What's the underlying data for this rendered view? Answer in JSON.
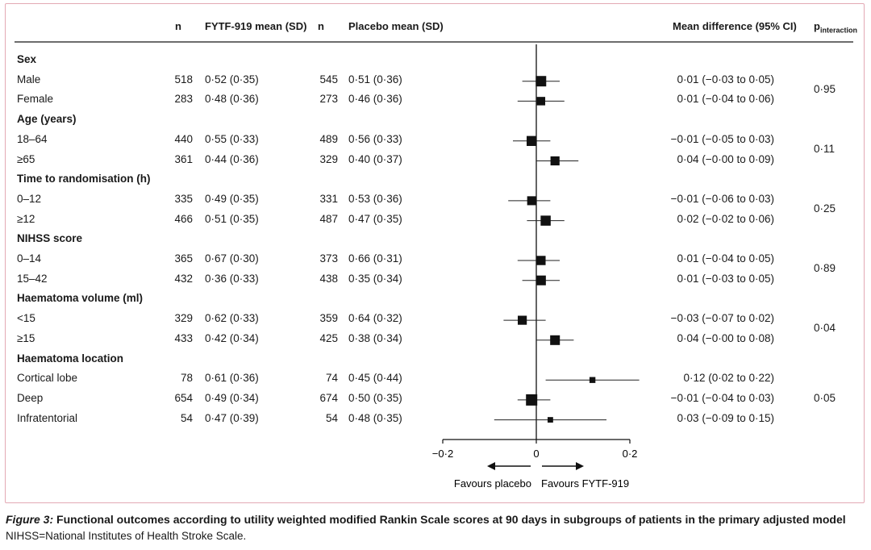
{
  "header": {
    "n1": "n",
    "drug_mean": "FYTF-919 mean (SD)",
    "n2": "n",
    "placebo_mean": "Placebo mean (SD)",
    "mean_diff": "Mean difference (95% CI)",
    "p_main": "p",
    "p_sub": "interaction"
  },
  "groups": [
    {
      "label": "Sex",
      "p_interaction": "0·95",
      "rows": [
        {
          "label": "Male",
          "n_drug": "518",
          "drug_mean": "0·52 (0·35)",
          "n_placebo": "545",
          "placebo_mean": "0·51 (0·36)",
          "ci_text": "0·01 (−0·03 to 0·05)"
        },
        {
          "label": "Female",
          "n_drug": "283",
          "drug_mean": "0·48 (0·36)",
          "n_placebo": "273",
          "placebo_mean": "0·46 (0·36)",
          "ci_text": "0·01 (−0·04 to 0·06)"
        }
      ]
    },
    {
      "label": "Age (years)",
      "p_interaction": "0·11",
      "rows": [
        {
          "label": "18–64",
          "n_drug": "440",
          "drug_mean": "0·55 (0·33)",
          "n_placebo": "489",
          "placebo_mean": "0·56 (0·33)",
          "ci_text": "−0·01 (−0·05 to 0·03)"
        },
        {
          "label": "≥65",
          "n_drug": "361",
          "drug_mean": "0·44 (0·36)",
          "n_placebo": "329",
          "placebo_mean": "0·40 (0·37)",
          "ci_text": "0·04 (−0·00 to 0·09)"
        }
      ]
    },
    {
      "label": "Time to randomisation (h)",
      "p_interaction": "0·25",
      "rows": [
        {
          "label": "0–12",
          "n_drug": "335",
          "drug_mean": "0·49 (0·35)",
          "n_placebo": "331",
          "placebo_mean": "0·53 (0·36)",
          "ci_text": "−0·01 (−0·06 to 0·03)"
        },
        {
          "label": "≥12",
          "n_drug": "466",
          "drug_mean": "0·51 (0·35)",
          "n_placebo": "487",
          "placebo_mean": "0·47 (0·35)",
          "ci_text": "0·02 (−0·02 to 0·06)"
        }
      ]
    },
    {
      "label": "NIHSS score",
      "p_interaction": "0·89",
      "rows": [
        {
          "label": "0–14",
          "n_drug": "365",
          "drug_mean": "0·67 (0·30)",
          "n_placebo": "373",
          "placebo_mean": "0·66 (0·31)",
          "ci_text": "0·01 (−0·04 to 0·05)"
        },
        {
          "label": "15–42",
          "n_drug": "432",
          "drug_mean": "0·36 (0·33)",
          "n_placebo": "438",
          "placebo_mean": "0·35 (0·34)",
          "ci_text": "0·01 (−0·03 to 0·05)"
        }
      ]
    },
    {
      "label": "Haematoma volume (ml)",
      "p_interaction": "0·04",
      "rows": [
        {
          "label": "<15",
          "n_drug": "329",
          "drug_mean": "0·62 (0·33)",
          "n_placebo": "359",
          "placebo_mean": "0·64 (0·32)",
          "ci_text": "−0·03 (−0·07 to 0·02)"
        },
        {
          "label": "≥15",
          "n_drug": "433",
          "drug_mean": "0·42 (0·34)",
          "n_placebo": "425",
          "placebo_mean": "0·38 (0·34)",
          "ci_text": "0·04 (−0·00 to 0·08)"
        }
      ]
    },
    {
      "label": "Haematoma location",
      "p_interaction": "0·05",
      "rows": [
        {
          "label": "Cortical lobe",
          "n_drug": "78",
          "drug_mean": "0·61 (0·36)",
          "n_placebo": "74",
          "placebo_mean": "0·45 (0·44)",
          "ci_text": "0·12 (0·02 to 0·22)"
        },
        {
          "label": "Deep",
          "n_drug": "654",
          "drug_mean": "0·49 (0·34)",
          "n_placebo": "674",
          "placebo_mean": "0·50 (0·35)",
          "ci_text": "−0·01 (−0·04 to 0·03)"
        },
        {
          "label": "Infratentorial",
          "n_drug": "54",
          "drug_mean": "0·47 (0·39)",
          "n_placebo": "54",
          "placebo_mean": "0·48 (0·35)",
          "ci_text": "0·03 (−0·09 to 0·15)"
        }
      ]
    }
  ],
  "chart_data": {
    "type": "forest",
    "xlim": [
      -0.2,
      0.2
    ],
    "ticks": [
      -0.2,
      0,
      0.2
    ],
    "tick_labels": [
      "−0·2",
      "0",
      "0·2"
    ],
    "reference_line": 0,
    "left_arrow_label": "Favours placebo",
    "right_arrow_label": "Favours FYTF-919",
    "points": [
      {
        "subgroup": "Male",
        "estimate": 0.01,
        "lower": -0.03,
        "upper": 0.05,
        "weight": 1063
      },
      {
        "subgroup": "Female",
        "estimate": 0.01,
        "lower": -0.04,
        "upper": 0.06,
        "weight": 556
      },
      {
        "subgroup": "18–64",
        "estimate": -0.01,
        "lower": -0.05,
        "upper": 0.03,
        "weight": 929
      },
      {
        "subgroup": "≥65",
        "estimate": 0.04,
        "lower": -0.0,
        "upper": 0.09,
        "weight": 690
      },
      {
        "subgroup": "0–12",
        "estimate": -0.01,
        "lower": -0.06,
        "upper": 0.03,
        "weight": 666
      },
      {
        "subgroup": "≥12",
        "estimate": 0.02,
        "lower": -0.02,
        "upper": 0.06,
        "weight": 953
      },
      {
        "subgroup": "0–14",
        "estimate": 0.01,
        "lower": -0.04,
        "upper": 0.05,
        "weight": 738
      },
      {
        "subgroup": "15–42",
        "estimate": 0.01,
        "lower": -0.03,
        "upper": 0.05,
        "weight": 870
      },
      {
        "subgroup": "<15",
        "estimate": -0.03,
        "lower": -0.07,
        "upper": 0.02,
        "weight": 688
      },
      {
        "subgroup": "≥15",
        "estimate": 0.04,
        "lower": -0.0,
        "upper": 0.08,
        "weight": 858
      },
      {
        "subgroup": "Cortical lobe",
        "estimate": 0.12,
        "lower": 0.02,
        "upper": 0.22,
        "weight": 152
      },
      {
        "subgroup": "Deep",
        "estimate": -0.01,
        "lower": -0.04,
        "upper": 0.03,
        "weight": 1328
      },
      {
        "subgroup": "Infratentorial",
        "estimate": 0.03,
        "lower": -0.09,
        "upper": 0.15,
        "weight": 108
      }
    ]
  },
  "caption": {
    "figure_label": "Figure 3:",
    "text": "Functional outcomes according to utility weighted modified Rankin Scale scores at 90 days in subgroups of patients in the primary adjusted model",
    "footnote": "NIHSS=National Institutes of Health Stroke Scale."
  }
}
